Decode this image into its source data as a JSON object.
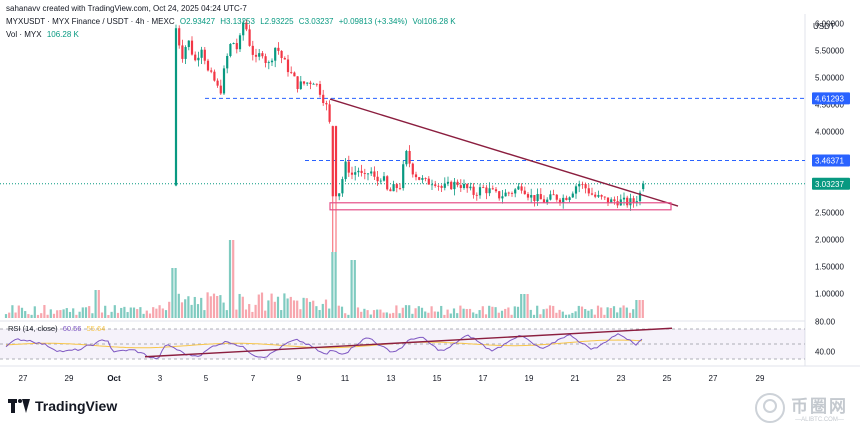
{
  "header": {
    "credit": "sahanavv created with TradingView.com, Oct 24, 2025 04:24 UTC-7",
    "symbol": "MYXUSDT · MYX Finance / USDT · 4h · MEXC",
    "open": "O2.93427",
    "high": "H3.13253",
    "low": "L2.93225",
    "close": "C3.03237",
    "change": "+0.09813 (+3.34%)",
    "vol": "Vol106.28 K",
    "vol_label": "Vol · MYX",
    "vol_value": "106.28 K",
    "currency": "USDT"
  },
  "price_axis": {
    "ticks": [
      "6.00000",
      "5.50000",
      "5.00000",
      "4.50000",
      "4.00000",
      "3.50000",
      "3.00000",
      "2.50000",
      "2.00000",
      "1.50000",
      "1.00000"
    ],
    "tick_values": [
      6,
      5.5,
      5,
      4.5,
      4,
      3.5,
      3,
      2.5,
      2,
      1.5,
      1
    ],
    "markers": [
      {
        "label": "4.61293",
        "value": 4.61293,
        "color": "#2962ff"
      },
      {
        "label": "3.46371",
        "value": 3.46371,
        "color": "#2962ff"
      },
      {
        "label": "3.03237",
        "value": 3.03237,
        "color": "#089981"
      }
    ]
  },
  "rsi": {
    "label": "RSI (14, close)",
    "value1": "60.56",
    "value2": "55.64",
    "ticks": [
      "80.00",
      "40.00"
    ],
    "tick_values": [
      80,
      40
    ]
  },
  "x_axis": {
    "labels": [
      "27",
      "29",
      "Oct",
      "3",
      "5",
      "7",
      "9",
      "11",
      "13",
      "15",
      "17",
      "19",
      "21",
      "23",
      "25",
      "27",
      "29"
    ]
  },
  "colors": {
    "up": "#089981",
    "down": "#f23645",
    "up_vol": "#7fcbc0",
    "down_vol": "#f7a6ad",
    "trendline": "#8b1e3f",
    "support_box": "#e5508a",
    "dashed": "#2962ff",
    "rsi_line": "#7e57c2",
    "rsi_ma": "#f7c548"
  },
  "branding": {
    "tradingview": "TradingView",
    "watermark_cn": "币圈网",
    "watermark_url": "—ALIBTC.COM—"
  },
  "chart_data": {
    "type": "candlestick",
    "title": "MYXUSDT · MYX Finance / USDT · 4h · MEXC",
    "ylim": [
      0.6,
      6.5
    ],
    "dates": [
      "Oct 4",
      "Oct 5",
      "Oct 6",
      "Oct 7",
      "Oct 8",
      "Oct 9",
      "Oct 10",
      "Oct 11",
      "Oct 12",
      "Oct 13",
      "Oct 14",
      "Oct 15",
      "Oct 16",
      "Oct 17",
      "Oct 18",
      "Oct 19",
      "Oct 20",
      "Oct 21",
      "Oct 22",
      "Oct 23",
      "Oct 24"
    ],
    "close_approx": [
      5.9,
      5.1,
      5.4,
      5.7,
      5.3,
      4.9,
      4.55,
      3.6,
      3.05,
      3.5,
      3.15,
      2.95,
      3.0,
      2.95,
      2.8,
      2.9,
      2.85,
      3.0,
      2.75,
      2.7,
      3.03237
    ],
    "levels": {
      "resistance_1": 4.61293,
      "resistance_2": 3.46371,
      "last": 3.03237,
      "support_zone": [
        2.55,
        2.7
      ]
    },
    "descending_trendline": {
      "from": [
        "Oct 10",
        4.6
      ],
      "to": [
        "Oct 25",
        2.63
      ]
    },
    "rsi_trendline": "rising from ~34 (Oct 3) to ~70 (Oct 24)",
    "rsi_last": 60.56
  }
}
